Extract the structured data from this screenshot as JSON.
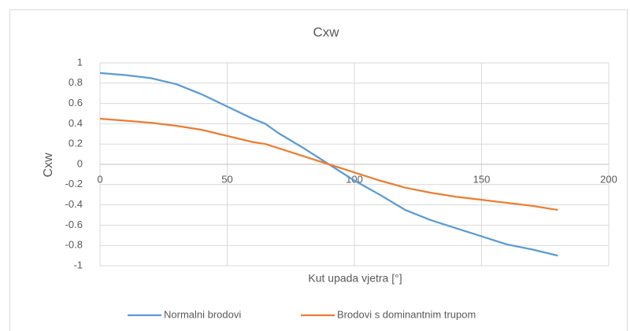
{
  "chart_data": {
    "type": "line",
    "title": "Cxw",
    "x_label": "Kut upada vjetra [°]",
    "y_label": "Cxw",
    "x": [
      0,
      10,
      20,
      30,
      40,
      50,
      60,
      65,
      70,
      80,
      90,
      100,
      110,
      120,
      130,
      140,
      150,
      160,
      170,
      180
    ],
    "series": [
      {
        "name": "Normalni brodovi",
        "color": "#5b9bd5",
        "values": [
          0.9,
          0.88,
          0.85,
          0.79,
          0.69,
          0.57,
          0.45,
          0.4,
          0.31,
          0.16,
          0.0,
          -0.16,
          -0.3,
          -0.45,
          -0.55,
          -0.63,
          -0.71,
          -0.79,
          -0.84,
          -0.9
        ]
      },
      {
        "name": "Brodovi s dominantnim trupom",
        "color": "#ed7d31",
        "values": [
          0.45,
          0.43,
          0.41,
          0.38,
          0.34,
          0.28,
          0.22,
          0.2,
          0.16,
          0.08,
          0.0,
          -0.08,
          -0.16,
          -0.23,
          -0.28,
          -0.32,
          -0.35,
          -0.38,
          -0.41,
          -0.45
        ]
      }
    ],
    "xlim": [
      0,
      200
    ],
    "xticks": [
      0,
      50,
      100,
      150,
      200
    ],
    "ylim": [
      -1,
      1
    ],
    "yticks": [
      -1,
      -0.8,
      -0.6,
      -0.4,
      -0.2,
      0,
      0.2,
      0.4,
      0.6,
      0.8,
      1
    ],
    "grid": true,
    "legend": "bottom"
  }
}
